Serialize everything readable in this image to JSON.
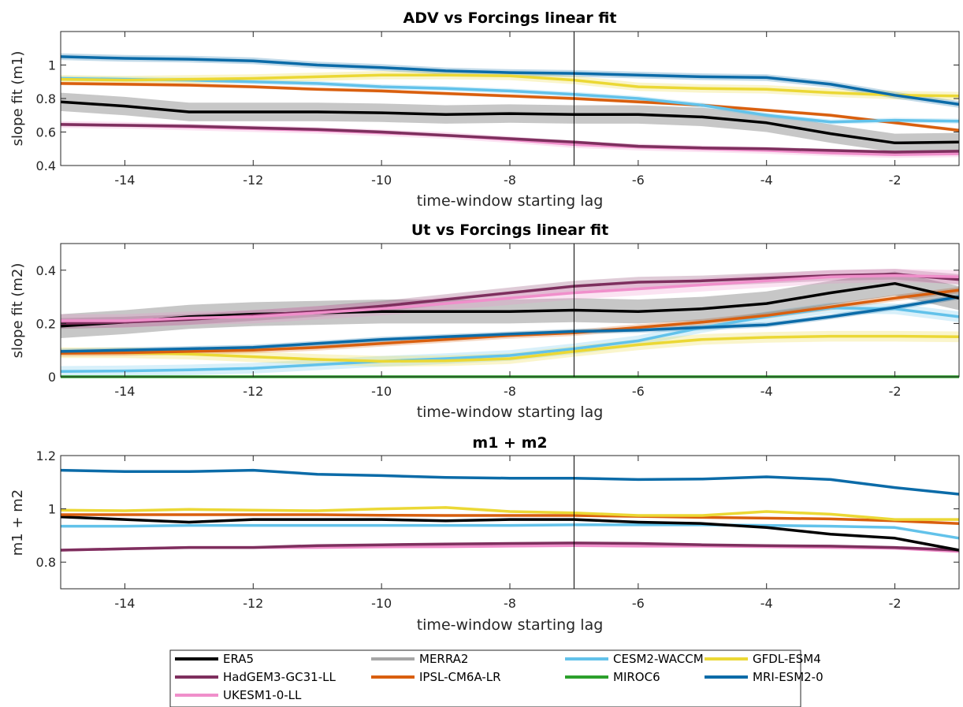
{
  "colors": {
    "ERA5": "#000000",
    "MERRA2": "#a6a6a6",
    "CESM2-WACCM": "#62c2ea",
    "GFDL-ESM4": "#ebd835",
    "HadGEM3-GC31-LL": "#7e2f5e",
    "IPSL-CM6A-LR": "#d95f0e",
    "MIROC6": "#2ca02c",
    "MRI-ESM2-0": "#0b6ba8",
    "UKESM1-0-LL": "#f08fcb"
  },
  "legend": {
    "entries": [
      "ERA5",
      "MERRA2",
      "CESM2-WACCM",
      "GFDL-ESM4",
      "HadGEM3-GC31-LL",
      "IPSL-CM6A-LR",
      "MIROC6",
      "MRI-ESM2-0",
      "UKESM1-0-LL"
    ]
  },
  "chart_data": [
    {
      "type": "line",
      "title": "ADV vs Forcings linear fit",
      "xlabel": "time-window starting lag",
      "ylabel": "slope fit (m1)",
      "xlim": [
        -15,
        -1
      ],
      "ylim": [
        0.4,
        1.2
      ],
      "xticks": [
        -14,
        -12,
        -10,
        -8,
        -6,
        -4,
        -2
      ],
      "yticks": [
        0.4,
        0.6,
        0.8,
        1
      ],
      "vline": -7,
      "x": [
        -15,
        -14,
        -13,
        -12,
        -11,
        -10,
        -9,
        -8,
        -7,
        -6,
        -5,
        -4,
        -3,
        -2,
        -1
      ],
      "series": [
        {
          "name": "UKESM1-0-LL",
          "values": [
            0.645,
            0.64,
            0.63,
            0.62,
            0.61,
            0.595,
            0.58,
            0.555,
            0.525,
            0.51,
            0.5,
            0.49,
            0.475,
            0.465,
            0.47
          ],
          "band": 0.02
        },
        {
          "name": "HadGEM3-GC31-LL",
          "values": [
            0.645,
            0.64,
            0.635,
            0.625,
            0.615,
            0.6,
            0.58,
            0.56,
            0.54,
            0.515,
            0.505,
            0.5,
            0.49,
            0.48,
            0.485
          ],
          "band": 0.01
        },
        {
          "name": "ERA5",
          "values": [
            0.78,
            0.755,
            0.72,
            0.72,
            0.72,
            0.715,
            0.705,
            0.71,
            0.705,
            0.705,
            0.69,
            0.655,
            0.59,
            0.535,
            0.54
          ],
          "band": 0.055
        },
        {
          "name": "IPSL-CM6A-LR",
          "values": [
            0.89,
            0.885,
            0.88,
            0.87,
            0.855,
            0.845,
            0.83,
            0.815,
            0.8,
            0.78,
            0.76,
            0.73,
            0.7,
            0.655,
            0.61
          ],
          "band": 0.01
        },
        {
          "name": "CESM2-WACCM",
          "values": [
            0.92,
            0.915,
            0.91,
            0.9,
            0.89,
            0.87,
            0.86,
            0.845,
            0.825,
            0.8,
            0.76,
            0.7,
            0.66,
            0.67,
            0.665
          ],
          "band": 0.015
        },
        {
          "name": "GFDL-ESM4",
          "values": [
            0.915,
            0.91,
            0.915,
            0.92,
            0.93,
            0.94,
            0.94,
            0.935,
            0.91,
            0.87,
            0.86,
            0.855,
            0.835,
            0.82,
            0.815
          ],
          "band": 0.025
        },
        {
          "name": "MRI-ESM2-0",
          "values": [
            1.05,
            1.04,
            1.035,
            1.025,
            1.0,
            0.985,
            0.965,
            0.955,
            0.95,
            0.94,
            0.93,
            0.925,
            0.885,
            0.82,
            0.765
          ],
          "band": 0.02
        }
      ]
    },
    {
      "type": "line",
      "title": "Ut vs Forcings linear fit",
      "xlabel": "time-window starting lag",
      "ylabel": "slope fit (m2)",
      "xlim": [
        -15,
        -1
      ],
      "ylim": [
        0,
        0.5
      ],
      "xticks": [
        -14,
        -12,
        -10,
        -8,
        -6,
        -4,
        -2
      ],
      "yticks": [
        0,
        0.2,
        0.4
      ],
      "vline": -7,
      "x": [
        -15,
        -14,
        -13,
        -12,
        -11,
        -10,
        -9,
        -8,
        -7,
        -6,
        -5,
        -4,
        -3,
        -2,
        -1
      ],
      "series": [
        {
          "name": "MIROC6",
          "values": [
            0,
            0,
            0,
            0,
            0,
            0,
            0,
            0,
            0,
            0,
            0,
            0,
            0,
            0,
            0
          ],
          "band": 0
        },
        {
          "name": "CESM2-WACCM",
          "values": [
            0.02,
            0.022,
            0.026,
            0.032,
            0.045,
            0.058,
            0.068,
            0.08,
            0.105,
            0.135,
            0.185,
            0.225,
            0.258,
            0.255,
            0.225
          ],
          "band": 0.02
        },
        {
          "name": "GFDL-ESM4",
          "values": [
            0.09,
            0.09,
            0.085,
            0.075,
            0.065,
            0.058,
            0.06,
            0.068,
            0.095,
            0.12,
            0.14,
            0.148,
            0.152,
            0.152,
            0.15
          ],
          "band": 0.02
        },
        {
          "name": "IPSL-CM6A-LR",
          "values": [
            0.088,
            0.09,
            0.095,
            0.1,
            0.11,
            0.125,
            0.14,
            0.155,
            0.165,
            0.185,
            0.205,
            0.23,
            0.262,
            0.295,
            0.325
          ],
          "band": 0.012
        },
        {
          "name": "MRI-ESM2-0",
          "values": [
            0.095,
            0.1,
            0.105,
            0.11,
            0.125,
            0.14,
            0.15,
            0.16,
            0.17,
            0.175,
            0.185,
            0.195,
            0.225,
            0.26,
            0.3
          ],
          "band": 0.01
        },
        {
          "name": "ERA5",
          "values": [
            0.19,
            0.205,
            0.225,
            0.235,
            0.24,
            0.245,
            0.245,
            0.245,
            0.25,
            0.245,
            0.255,
            0.275,
            0.315,
            0.35,
            0.295
          ],
          "band": 0.045
        },
        {
          "name": "HadGEM3-GC31-LL",
          "values": [
            0.2,
            0.205,
            0.215,
            0.23,
            0.245,
            0.265,
            0.29,
            0.315,
            0.34,
            0.355,
            0.36,
            0.37,
            0.38,
            0.385,
            0.365
          ],
          "band": 0.02
        },
        {
          "name": "UKESM1-0-LL",
          "values": [
            0.21,
            0.21,
            0.22,
            0.225,
            0.24,
            0.255,
            0.275,
            0.295,
            0.315,
            0.33,
            0.345,
            0.36,
            0.375,
            0.38,
            0.375
          ],
          "band": 0.025
        }
      ]
    },
    {
      "type": "line",
      "title": "m1 + m2",
      "xlabel": "time-window starting lag",
      "ylabel": "m1 + m2",
      "xlim": [
        -15,
        -1
      ],
      "ylim": [
        0.7,
        1.2
      ],
      "xticks": [
        -14,
        -12,
        -10,
        -8,
        -6,
        -4,
        -2
      ],
      "yticks": [
        0.8,
        1,
        1.2
      ],
      "vline": -7,
      "x": [
        -15,
        -14,
        -13,
        -12,
        -11,
        -10,
        -9,
        -8,
        -7,
        -6,
        -5,
        -4,
        -3,
        -2,
        -1
      ],
      "series": [
        {
          "name": "UKESM1-0-LL",
          "values": [
            0.845,
            0.85,
            0.855,
            0.855,
            0.855,
            0.857,
            0.858,
            0.86,
            0.862,
            0.86,
            0.86,
            0.858,
            0.855,
            0.852,
            0.84
          ],
          "band": 0
        },
        {
          "name": "HadGEM3-GC31-LL",
          "values": [
            0.845,
            0.85,
            0.855,
            0.855,
            0.862,
            0.865,
            0.868,
            0.87,
            0.872,
            0.87,
            0.865,
            0.862,
            0.86,
            0.855,
            0.845
          ],
          "band": 0
        },
        {
          "name": "CESM2-WACCM",
          "values": [
            0.935,
            0.935,
            0.938,
            0.938,
            0.938,
            0.938,
            0.938,
            0.938,
            0.94,
            0.94,
            0.94,
            0.938,
            0.935,
            0.93,
            0.89
          ],
          "band": 0
        },
        {
          "name": "ERA5",
          "values": [
            0.97,
            0.96,
            0.95,
            0.96,
            0.96,
            0.96,
            0.955,
            0.96,
            0.96,
            0.95,
            0.945,
            0.93,
            0.905,
            0.89,
            0.845
          ],
          "band": 0
        },
        {
          "name": "IPSL-CM6A-LR",
          "values": [
            0.978,
            0.978,
            0.978,
            0.978,
            0.978,
            0.976,
            0.975,
            0.975,
            0.975,
            0.972,
            0.968,
            0.965,
            0.962,
            0.955,
            0.945
          ],
          "band": 0
        },
        {
          "name": "GFDL-ESM4",
          "values": [
            0.995,
            0.993,
            0.998,
            0.995,
            0.993,
            1.0,
            1.005,
            0.99,
            0.985,
            0.975,
            0.975,
            0.99,
            0.98,
            0.96,
            0.96
          ],
          "band": 0
        },
        {
          "name": "MRI-ESM2-0",
          "values": [
            1.145,
            1.14,
            1.14,
            1.145,
            1.13,
            1.125,
            1.118,
            1.115,
            1.115,
            1.11,
            1.112,
            1.12,
            1.11,
            1.08,
            1.055
          ],
          "band": 0
        }
      ]
    }
  ]
}
